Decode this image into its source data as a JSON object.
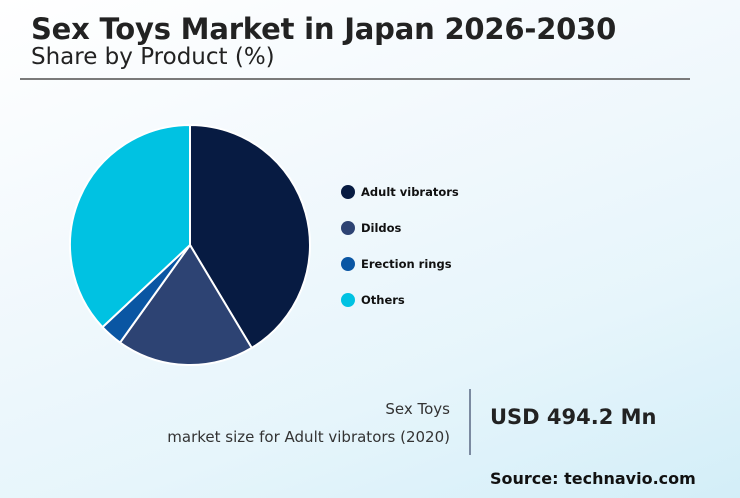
{
  "header": {
    "title": "Sex Toys Market in Japan 2026-2030",
    "subtitle": "Share by Product (%)"
  },
  "chart_data": {
    "type": "pie",
    "title": "Sex Toys Market in Japan 2026-2030",
    "subtitle": "Share by Product (%)",
    "categories": [
      "Adult vibrators",
      "Dildos",
      "Erection rings",
      "Others"
    ],
    "values": [
      41.4,
      18.5,
      3.1,
      37.0
    ],
    "colors": [
      "#071b42",
      "#2d4373",
      "#0a56a3",
      "#00c2e2"
    ],
    "legend_position": "right",
    "start_angle": "top, clockwise"
  },
  "legend": {
    "items": [
      {
        "label": "Adult vibrators",
        "color": "#071b42"
      },
      {
        "label": "Dildos",
        "color": "#2d4373"
      },
      {
        "label": "Erection rings",
        "color": "#0a56a3"
      },
      {
        "label": "Others",
        "color": "#00c2e2"
      }
    ]
  },
  "stat": {
    "line1": "Sex Toys",
    "line2": "market size for Adult vibrators (2020)",
    "value": "USD 494.2 Mn"
  },
  "footer": {
    "source": "Source: technavio.com"
  }
}
